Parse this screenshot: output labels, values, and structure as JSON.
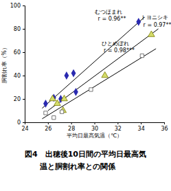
{
  "chart_data": {
    "type": "scatter",
    "title": [
      "図4　出穂後10日間の平均日最高気",
      "温と胴割れ率との関係"
    ],
    "x_label": "平均日最高気温（℃）",
    "y_label": "胴割れ率（%）",
    "xlim": [
      24,
      36
    ],
    "xticks": [
      24,
      26,
      28,
      30,
      32,
      34,
      36
    ],
    "ylim": [
      0,
      100
    ],
    "yticks": [
      0,
      20,
      40,
      60,
      80,
      100
    ],
    "grid": false,
    "series": [
      {
        "name": "むつほまれ",
        "type": "scatter",
        "marker": "diamond",
        "color": "#2a2ab0",
        "x": [
          25.8,
          26.5,
          27.1,
          27.6,
          28.2,
          28.4,
          33.8
        ],
        "values": [
          16,
          21,
          20,
          40,
          42,
          26,
          86
        ]
      },
      {
        "name": "トヨニシキ",
        "type": "scatter",
        "marker": "triangle",
        "color": "#d4dc6a",
        "x": [
          26.4,
          26.8,
          27.3,
          27.4,
          30.9,
          34.9
        ],
        "values": [
          20,
          16,
          10,
          20,
          40,
          75
        ]
      },
      {
        "name": "ひとめぼれ",
        "type": "scatter",
        "marker": "square",
        "color": "#ffffff",
        "x": [
          25.8,
          26.5,
          27.2,
          29.7,
          34.1
        ],
        "values": [
          8,
          4,
          9,
          28,
          57
        ]
      },
      {
        "type": "line",
        "line_style": "solid",
        "color": "#000000",
        "x": [
          25.5,
          34.3
        ],
        "values": [
          12,
          90
        ]
      },
      {
        "type": "line",
        "line_style": "solid",
        "color": "#000000",
        "x": [
          26.0,
          35.5
        ],
        "values": [
          10,
          80
        ]
      },
      {
        "type": "line",
        "line_style": "solid",
        "color": "#000000",
        "x": [
          25.5,
          35.3
        ],
        "values": [
          3,
          63
        ]
      }
    ],
    "annotations": [
      "むつほまれ",
      "r = 0.96**",
      "トヨニシキ",
      "r = 0.97**",
      "ひとめぼれ",
      "r = 0.98***"
    ]
  }
}
